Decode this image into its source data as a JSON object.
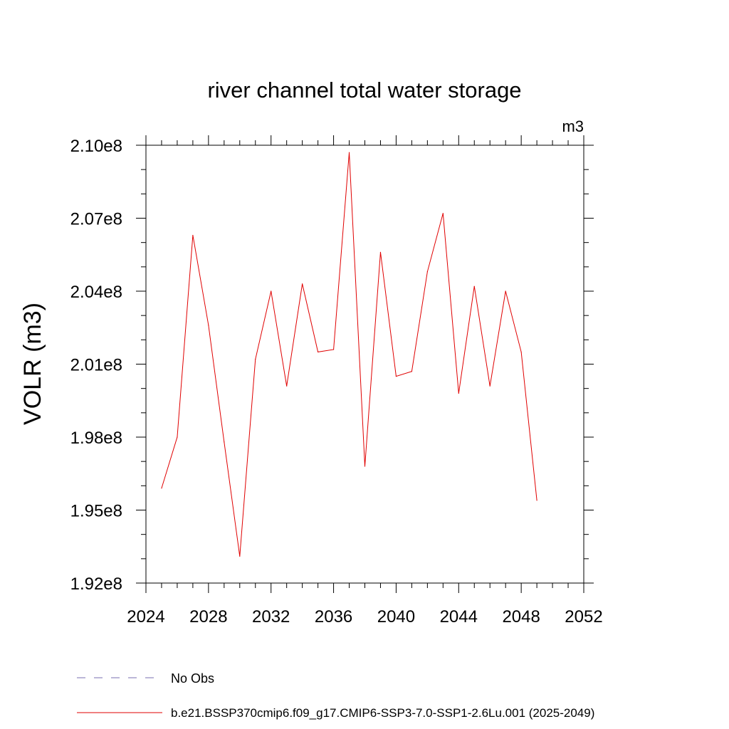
{
  "chart_data": {
    "type": "line",
    "title": "river channel total water storage",
    "units_label": "m3",
    "ylabel": "VOLR  (m3)",
    "xlabel": "",
    "xlim": [
      2024,
      2052
    ],
    "ylim": [
      192000000,
      210000000
    ],
    "x_ticks": [
      2024,
      2028,
      2032,
      2036,
      2040,
      2044,
      2048,
      2052
    ],
    "x_tick_labels": [
      "2024",
      "2028",
      "2032",
      "2036",
      "2040",
      "2044",
      "2048",
      "2052"
    ],
    "y_ticks": [
      192000000,
      195000000,
      198000000,
      201000000,
      204000000,
      207000000,
      210000000
    ],
    "y_tick_labels": [
      "1.92e8",
      "1.95e8",
      "1.98e8",
      "2.01e8",
      "2.04e8",
      "2.07e8",
      "2.10e8"
    ],
    "grid": false,
    "legend_position": "bottom",
    "series": [
      {
        "name": "b.e21.BSSP370cmip6.f09_g17.CMIP6-SSP3-7.0-SSP1-2.6Lu.001 (2025-2049)",
        "color": "#e00000",
        "x": [
          2025,
          2026,
          2027,
          2028,
          2029,
          2030,
          2031,
          2032,
          2033,
          2034,
          2035,
          2036,
          2037,
          2038,
          2039,
          2040,
          2041,
          2042,
          2043,
          2044,
          2045,
          2046,
          2047,
          2048,
          2049
        ],
        "values": [
          195900000,
          198000000,
          206300000,
          202600000,
          197800000,
          193100000,
          201200000,
          204000000,
          200100000,
          204300000,
          201500000,
          201600000,
          209700000,
          196800000,
          205600000,
          200500000,
          200700000,
          204800000,
          207200000,
          199800000,
          204200000,
          200100000,
          204000000,
          201500000,
          195400000
        ]
      }
    ],
    "legend": [
      {
        "label": "No Obs",
        "style": "dashed",
        "color": "#7a6fb0"
      },
      {
        "label": "b.e21.BSSP370cmip6.f09_g17.CMIP6-SSP3-7.0-SSP1-2.6Lu.001 (2025-2049)",
        "style": "solid",
        "color": "#e00000"
      }
    ]
  }
}
